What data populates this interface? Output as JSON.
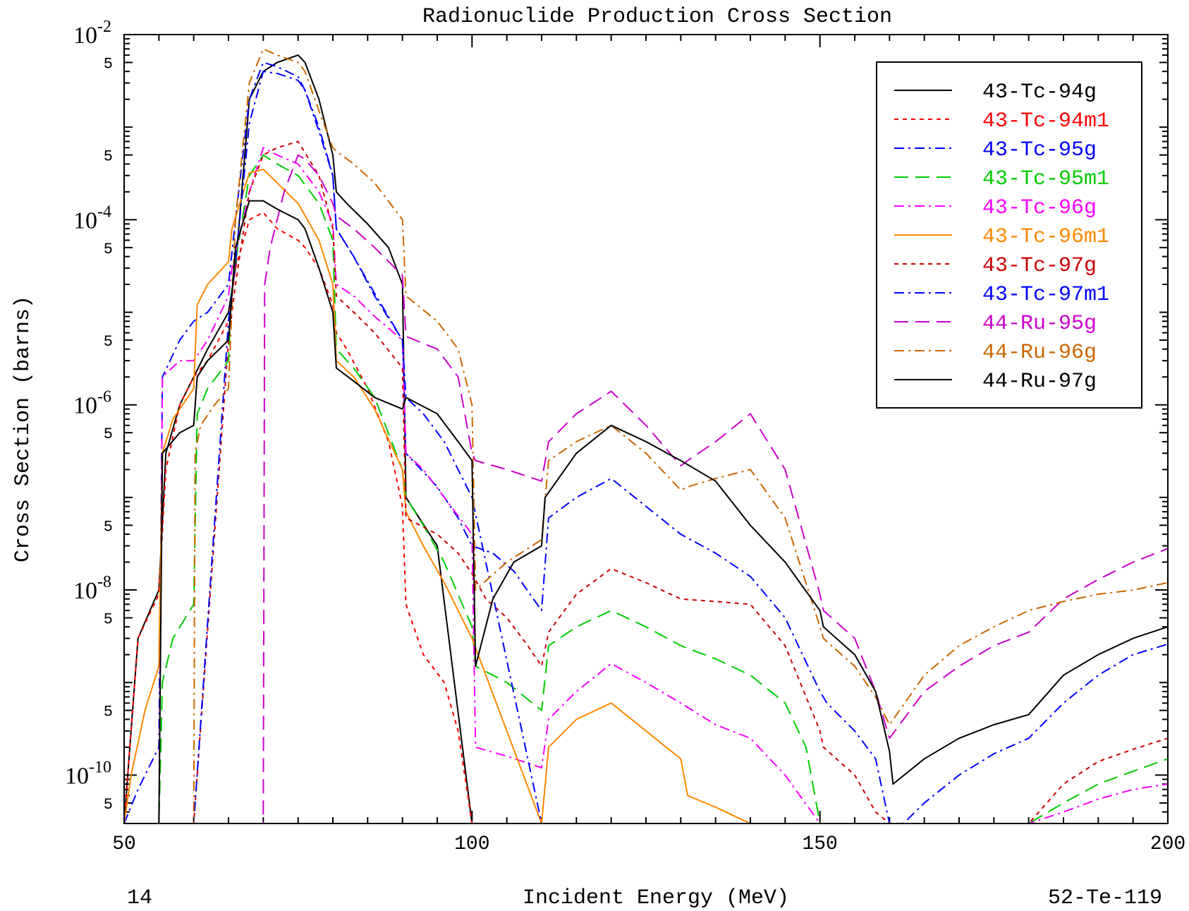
{
  "chart_data": {
    "type": "line",
    "title": "Radionuclide Production Cross Section",
    "xlabel": "Incident Energy (MeV)",
    "ylabel": "Cross Section (barns)",
    "footer_left": "14",
    "footer_right": "52-Te-119",
    "xlim": [
      50,
      200
    ],
    "ylim": [
      3e-11,
      0.01
    ],
    "y_scale": "log",
    "x_ticks": [
      50,
      100,
      150,
      200
    ],
    "y_decades": [
      {
        "value": 1e-10,
        "base": "10",
        "exp": "-10"
      },
      {
        "value": 1e-08,
        "base": "10",
        "exp": "-8"
      },
      {
        "value": 1e-06,
        "base": "10",
        "exp": "-6"
      },
      {
        "value": 0.0001,
        "base": "10",
        "exp": "-4"
      },
      {
        "value": 0.01,
        "base": "10",
        "exp": "-2"
      }
    ],
    "y_minor_label": "5",
    "legend_position": "top-right",
    "series": [
      {
        "name": "43-Tc-94g",
        "color": "#000000",
        "dash": "solid",
        "x": [
          50,
          52,
          55,
          56,
          58,
          60,
          62,
          65,
          66,
          68,
          70,
          72,
          75,
          76,
          78,
          80,
          80.5,
          82,
          85,
          88,
          90,
          90.5,
          95,
          100
        ],
        "y": [
          3e-11,
          3e-09,
          1e-08,
          3e-07,
          1e-06,
          2e-06,
          4e-06,
          1e-05,
          3e-05,
          0.002,
          0.004,
          0.005,
          0.006,
          0.005,
          0.002,
          0.0005,
          0.0002,
          0.00015,
          9e-05,
          5e-05,
          2e-05,
          1e-07,
          3e-08,
          3e-11
        ]
      },
      {
        "name": "43-Tc-94m1",
        "color": "#ff0000",
        "dash": "6,6",
        "x": [
          50,
          52,
          55,
          56,
          58,
          60,
          62,
          65,
          66,
          68,
          70,
          72,
          75,
          76,
          78,
          80,
          80.5,
          82,
          85,
          88,
          90,
          90.5,
          93,
          96,
          98,
          100
        ],
        "y": [
          3e-11,
          3e-09,
          9e-09,
          2e-07,
          1e-06,
          2e-06,
          3e-06,
          8e-06,
          3e-05,
          0.0001,
          0.00012,
          8e-05,
          6e-05,
          5e-05,
          3e-05,
          1.2e-05,
          6e-06,
          4e-06,
          1.5e-06,
          4e-07,
          8e-08,
          7e-09,
          2e-09,
          1e-09,
          3e-10,
          3e-11
        ]
      },
      {
        "name": "43-Tc-95g",
        "color": "#0000ff",
        "dash": "14,6,3,6",
        "x": [
          50,
          52,
          55,
          55.5,
          58,
          60,
          62,
          65,
          66,
          68,
          70,
          72,
          75,
          76,
          78,
          80,
          80.5,
          83,
          86,
          90,
          90.5,
          95,
          98,
          100,
          103,
          106,
          110,
          111,
          115,
          120,
          125,
          130,
          135,
          140,
          145,
          150,
          151,
          155,
          158,
          160,
          165,
          170,
          175,
          180,
          185,
          190,
          195,
          200
        ],
        "y": [
          3e-11,
          7e-11,
          2e-10,
          2e-06,
          5e-06,
          8e-06,
          1e-05,
          2e-05,
          0.0001,
          0.002,
          0.005,
          0.0045,
          0.0035,
          0.0025,
          0.0009,
          0.0003,
          8e-05,
          4e-05,
          1.5e-05,
          5e-06,
          3e-07,
          1.3e-07,
          6e-08,
          3e-08,
          2.5e-08,
          1.6e-08,
          6e-09,
          6e-08,
          1e-07,
          1.6e-07,
          8e-08,
          4e-08,
          2.5e-08,
          1.4e-08,
          5e-09,
          8e-10,
          6e-10,
          3e-10,
          1.5e-10,
          3e-11,
          3e-11,
          3e-11,
          3e-11,
          3e-11,
          3e-11,
          3e-11,
          3e-11,
          3e-11
        ]
      },
      {
        "name": "43-Tc-95m1",
        "color": "#00cc00",
        "dash": "20,10",
        "x": [
          50,
          55,
          55.5,
          57,
          60,
          60.5,
          62,
          65,
          65.5,
          68,
          70,
          72,
          75,
          78,
          80,
          80.5,
          83,
          86,
          90,
          90.5,
          93,
          96,
          100,
          100.5,
          105,
          110,
          111,
          115,
          120,
          125,
          130,
          135,
          140,
          145,
          148,
          150,
          180,
          185,
          190,
          195,
          200
        ],
        "y": [
          3e-11,
          3e-11,
          1e-09,
          3e-09,
          7e-09,
          8e-07,
          1.5e-06,
          3e-06,
          2e-05,
          0.0003,
          0.0005,
          0.0004,
          0.0003,
          0.00015,
          6e-05,
          4e-06,
          2.5e-06,
          1.2e-06,
          2e-07,
          1e-07,
          5e-08,
          2e-08,
          4e-09,
          1.5e-09,
          1e-09,
          5e-10,
          2.5e-09,
          4e-09,
          6e-09,
          4e-09,
          2.5e-09,
          1.8e-09,
          1.2e-09,
          6e-10,
          2e-10,
          3e-11,
          3e-11,
          5e-11,
          8e-11,
          1.1e-10,
          1.5e-10
        ]
      },
      {
        "name": "43-Tc-96g",
        "color": "#ff00ff",
        "dash": "14,6,3,6",
        "x": [
          50,
          55,
          55.5,
          58,
          60,
          62,
          65,
          65.5,
          68,
          70,
          72,
          75,
          78,
          80,
          80.5,
          83,
          86,
          90,
          90.5,
          93,
          96,
          100,
          100.5,
          105,
          110,
          111,
          115,
          120,
          125,
          130,
          135,
          140,
          145,
          150,
          155,
          160,
          180,
          185,
          190,
          195,
          200
        ],
        "y": [
          3e-11,
          3e-11,
          2e-06,
          3e-06,
          3e-06,
          5e-06,
          1.5e-05,
          3e-05,
          0.0002,
          0.0006,
          0.0005,
          0.0004,
          0.0002,
          9e-05,
          2e-05,
          1.5e-05,
          9e-06,
          5e-06,
          3e-07,
          2e-07,
          1e-07,
          4e-08,
          2e-10,
          1.6e-10,
          1.2e-10,
          4e-10,
          8e-10,
          1.6e-09,
          1e-09,
          6e-10,
          3.5e-10,
          2.5e-10,
          1e-10,
          3e-11,
          3e-11,
          3e-11,
          3e-11,
          4e-11,
          5.5e-11,
          7e-11,
          8e-11
        ]
      },
      {
        "name": "43-Tc-96m1",
        "color": "#ff8800",
        "dash": "solid",
        "x": [
          50,
          51,
          53,
          55,
          55.5,
          57,
          60,
          60.5,
          62,
          65,
          65.5,
          68,
          70,
          72,
          75,
          78,
          80,
          80.5,
          83,
          86,
          90,
          90.5,
          93,
          96,
          100,
          110,
          111,
          115,
          120,
          125,
          130,
          131,
          135,
          140,
          145,
          150
        ],
        "y": [
          3e-11,
          1e-10,
          5e-10,
          1.5e-09,
          3e-07,
          7e-07,
          1.5e-06,
          1.2e-05,
          2e-05,
          3.5e-05,
          8e-05,
          0.00032,
          0.00035,
          0.00025,
          0.00015,
          6e-05,
          2e-05,
          3e-06,
          2e-06,
          9e-07,
          2e-07,
          7e-08,
          3e-08,
          1.2e-08,
          3e-09,
          3e-11,
          2e-10,
          4e-10,
          6e-10,
          3e-10,
          1.5e-10,
          6e-11,
          4.5e-11,
          3e-11,
          3e-11,
          3e-11
        ]
      },
      {
        "name": "43-Tc-97g",
        "color": "#cc0000",
        "dash": "6,6",
        "x": [
          50,
          55,
          60,
          65,
          66,
          68,
          70,
          72,
          75,
          78,
          80,
          80.5,
          83,
          86,
          90,
          90.5,
          95,
          98,
          100,
          102,
          105,
          108,
          110,
          111,
          115,
          120,
          125,
          130,
          135,
          140,
          145,
          150,
          150.5,
          155,
          158,
          160,
          180,
          185,
          190,
          195,
          200
        ],
        "y": [
          3e-11,
          3e-11,
          3e-11,
          5e-06,
          2e-05,
          0.0002,
          0.0005,
          0.0006,
          0.0007,
          0.0003,
          8e-05,
          1.5e-05,
          1e-05,
          6e-06,
          2.5e-06,
          6e-08,
          4e-08,
          2.5e-08,
          1.5e-08,
          8e-09,
          5e-09,
          2.5e-09,
          1.5e-09,
          3.5e-09,
          9e-09,
          1.7e-08,
          1.2e-08,
          8e-09,
          7.5e-09,
          7e-09,
          2.5e-09,
          3e-10,
          2e-10,
          1e-10,
          4e-11,
          3e-11,
          3e-11,
          8e-11,
          1.4e-10,
          1.9e-10,
          2.5e-10
        ]
      },
      {
        "name": "43-Tc-97m1",
        "color": "#0000ff",
        "dash": "14,6,3,6",
        "x": [
          50,
          55,
          60,
          65,
          66,
          68,
          70,
          72,
          75,
          76,
          78,
          80,
          80.5,
          83,
          86,
          90,
          90.5,
          93,
          96,
          100,
          110,
          111,
          115,
          120,
          125,
          130,
          135,
          140,
          145,
          150,
          155,
          159,
          160,
          162,
          165,
          170,
          175,
          180,
          185,
          190,
          195,
          200
        ],
        "y": [
          3e-11,
          3e-11,
          3e-11,
          8e-06,
          3.5e-05,
          0.0011,
          0.004,
          0.0038,
          0.0032,
          0.0025,
          0.001,
          0.0003,
          8e-05,
          4e-05,
          1.6e-05,
          5e-06,
          1.2e-06,
          8e-07,
          4e-07,
          1e-07,
          3e-11,
          3e-11,
          3e-11,
          3e-11,
          3e-11,
          3e-11,
          3e-11,
          3e-11,
          3e-11,
          3e-11,
          3e-11,
          3e-11,
          3e-11,
          3e-11,
          5e-11,
          1e-10,
          1.7e-10,
          2.5e-10,
          6e-10,
          1.2e-09,
          2e-09,
          2.6e-09
        ]
      },
      {
        "name": "44-Ru-95g",
        "color": "#cc00cc",
        "dash": "20,10",
        "x": [
          50,
          70,
          70.2,
          71,
          73,
          75,
          76,
          78,
          80,
          80.5,
          83,
          86,
          90,
          90.5,
          95,
          98,
          100,
          100.5,
          105,
          110,
          111,
          115,
          120,
          125,
          130,
          131,
          135,
          140,
          145,
          150,
          150.5,
          155,
          158,
          160,
          165,
          170,
          175,
          180,
          185,
          190,
          195,
          200
        ],
        "y": [
          3e-11,
          3e-11,
          2e-05,
          5e-05,
          0.0002,
          0.0005,
          0.00045,
          0.0003,
          0.00015,
          0.00011,
          8e-05,
          5e-05,
          2.5e-05,
          5.5e-06,
          4e-06,
          2e-06,
          3e-07,
          2.5e-07,
          2e-07,
          1.5e-07,
          4e-07,
          8e-07,
          1.4e-06,
          6e-07,
          2.2e-07,
          2.5e-07,
          4e-07,
          8e-07,
          2e-07,
          9e-09,
          6e-09,
          3e-09,
          8e-10,
          2.5e-10,
          8e-10,
          1.5e-09,
          2.5e-09,
          3.5e-09,
          8e-09,
          1.3e-08,
          2e-08,
          2.8e-08
        ]
      },
      {
        "name": "44-Ru-96g",
        "color": "#cc6600",
        "dash": "14,6,3,6",
        "x": [
          50,
          60,
          60.2,
          61,
          63,
          65,
          66,
          68,
          70,
          72,
          75,
          76,
          78,
          80,
          80.5,
          83,
          86,
          90,
          90.5,
          95,
          98,
          100,
          100.5,
          105,
          110,
          111,
          115,
          120,
          125,
          130,
          131,
          135,
          140,
          145,
          150,
          150.5,
          155,
          158,
          160,
          165,
          170,
          175,
          180,
          185,
          190,
          195,
          200
        ],
        "y": [
          3e-11,
          3e-11,
          3e-07,
          6e-07,
          1e-06,
          1.5e-06,
          0.0001,
          0.003,
          0.007,
          0.006,
          0.005,
          0.004,
          0.0015,
          0.0006,
          0.00055,
          0.0004,
          0.00025,
          0.0001,
          1.5e-05,
          8e-06,
          4e-06,
          1e-06,
          1e-08,
          2e-08,
          3.5e-08,
          2.5e-07,
          4e-07,
          6e-07,
          3e-07,
          1.2e-07,
          1.3e-07,
          1.6e-07,
          2e-07,
          6e-08,
          4e-09,
          3e-09,
          1.5e-09,
          7e-10,
          3.5e-10,
          1.2e-09,
          2.5e-09,
          4e-09,
          6e-09,
          7.5e-09,
          9e-09,
          1e-08,
          1.2e-08
        ]
      },
      {
        "name": "44-Ru-97g",
        "color": "#000000",
        "dash": "solid",
        "x": [
          50,
          55,
          55.5,
          58,
          60,
          60.5,
          62,
          65,
          66,
          68,
          70,
          72,
          75,
          76,
          78,
          80,
          80.5,
          83,
          86,
          90,
          90.5,
          95,
          98,
          100,
          100.5,
          103,
          106,
          110,
          110.5,
          115,
          120,
          125,
          130,
          135,
          140,
          145,
          150,
          150.5,
          155,
          158,
          160,
          160.5,
          165,
          170,
          175,
          180,
          185,
          190,
          195,
          200
        ],
        "y": [
          3e-11,
          3e-11,
          3e-07,
          5e-07,
          6e-07,
          2e-06,
          3e-06,
          5e-06,
          5e-05,
          0.00016,
          0.00016,
          0.00013,
          0.0001,
          8e-05,
          3e-05,
          1e-05,
          2.5e-06,
          1.8e-06,
          1.2e-06,
          9e-07,
          1.2e-06,
          8e-07,
          4e-07,
          2.5e-07,
          1.5e-09,
          8e-09,
          2e-08,
          3e-08,
          1e-07,
          3e-07,
          6e-07,
          4e-07,
          2.5e-07,
          1.5e-07,
          5e-08,
          2e-08,
          6e-09,
          4e-09,
          2e-09,
          8e-10,
          1.8e-10,
          8e-11,
          1.5e-10,
          2.5e-10,
          3.5e-10,
          4.5e-10,
          1.2e-09,
          2e-09,
          3e-09,
          4e-09
        ]
      }
    ]
  }
}
